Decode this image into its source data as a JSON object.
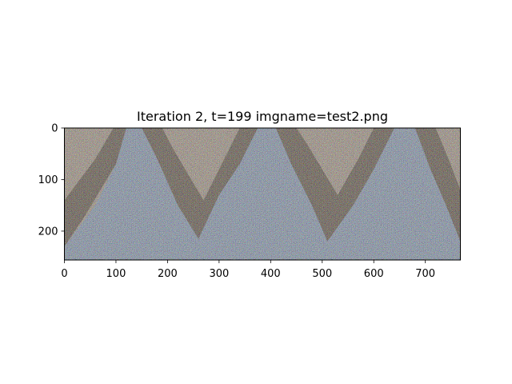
{
  "chart_data": {
    "type": "heatmap",
    "title": "Iteration 2, t=199 imgname=test2.png",
    "image_width": 768,
    "image_height": 256,
    "x_ticks": [
      0,
      100,
      200,
      300,
      400,
      500,
      600,
      700
    ],
    "y_ticks": [
      0,
      100,
      200
    ],
    "xlim": [
      0,
      768
    ],
    "ylim": [
      256,
      0
    ],
    "grid": false,
    "colors": {
      "sky": "#a8bcd8",
      "rock_dark": "#7a6a58",
      "rock_light": "#cbb9a6",
      "noise_strength": "high"
    }
  }
}
